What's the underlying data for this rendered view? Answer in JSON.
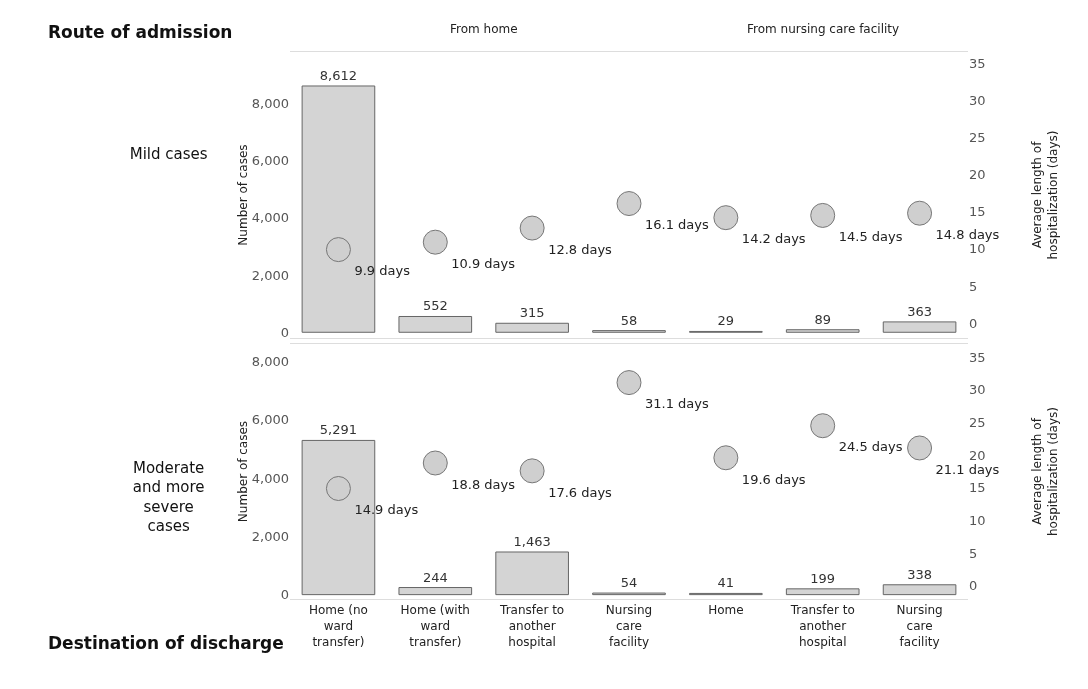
{
  "chart_data": [
    {
      "type": "bar",
      "title": "Mild cases",
      "ylabel": "Number of cases",
      "y2label": "Average length of hospitalization (days)",
      "annotations": [
        "Route of admission",
        "From home",
        "From nursing care facility"
      ],
      "tick_labels": "y",
      "categories": [
        null,
        null,
        null,
        null,
        null,
        null,
        null
      ],
      "ylim": [
        -200,
        9800
      ],
      "yticks": [
        0,
        {
          "value": 2000,
          "label": "2,000"
        },
        {
          "value": 4000,
          "label": "4,000"
        },
        {
          "value": 6000,
          "label": "6,000"
        },
        {
          "value": 8000,
          "label": "8,000"
        }
      ],
      "y2lim": [
        -2,
        36.5
      ],
      "y2ticks": [
        0,
        5,
        10,
        15,
        20,
        25,
        30,
        35
      ],
      "grid": false,
      "series": [
        {
          "color": "#d4d4d4",
          "values": [
            8612,
            552,
            315,
            58,
            29,
            89,
            363
          ],
          "value_labels": [
            "8,612",
            "552",
            "315",
            "58",
            "29",
            "89",
            "363"
          ]
        },
        {
          "type": "scatter",
          "axis": "y2",
          "marker": "circle",
          "color": "#cfcfcf",
          "values": [
            9.9,
            10.9,
            12.8,
            16.1,
            14.2,
            14.5,
            14.8
          ],
          "value_labels": [
            "9.9 days",
            "10.9 days",
            "12.8 days",
            "16.1 days",
            "14.2 days",
            "14.5 days",
            "14.8 days"
          ]
        }
      ]
    },
    {
      "type": "bar",
      "title": "Moderate and more severe cases",
      "ylabel": "Number of cases",
      "y2label": "Average length of hospitalization (days)",
      "annotations": [
        "Destination of discharge"
      ],
      "categories": [
        "Home (no ward transfer)",
        "Home (with ward transfer)",
        "Transfer to another hospital",
        "Nursing care facility",
        "Home",
        "Transfer to another hospital",
        "Nursing care facility"
      ],
      "ylim": [
        -150,
        8600
      ],
      "yticks": [
        0,
        {
          "value": 2000,
          "label": "2,000"
        },
        {
          "value": 4000,
          "label": "4,000"
        },
        {
          "value": 6000,
          "label": "6,000"
        },
        {
          "value": 8000,
          "label": "8,000"
        }
      ],
      "y2lim": [
        -2,
        37
      ],
      "y2ticks": [
        0,
        5,
        10,
        15,
        20,
        25,
        30,
        35
      ],
      "grid": false,
      "series": [
        {
          "color": "#d4d4d4",
          "values": [
            5291,
            244,
            1463,
            54,
            41,
            199,
            338
          ],
          "value_labels": [
            "5,291",
            "244",
            "1,463",
            "54",
            "41",
            "199",
            "338"
          ]
        },
        {
          "type": "scatter",
          "axis": "y2",
          "marker": "circle",
          "color": "#cfcfcf",
          "values": [
            14.9,
            18.8,
            17.6,
            31.1,
            19.6,
            24.5,
            21.1
          ],
          "value_labels": [
            "14.9 days",
            "18.8 days",
            "17.6 days",
            "31.1 days",
            "19.6 days",
            "24.5 days",
            "21.1 days"
          ]
        }
      ]
    }
  ]
}
